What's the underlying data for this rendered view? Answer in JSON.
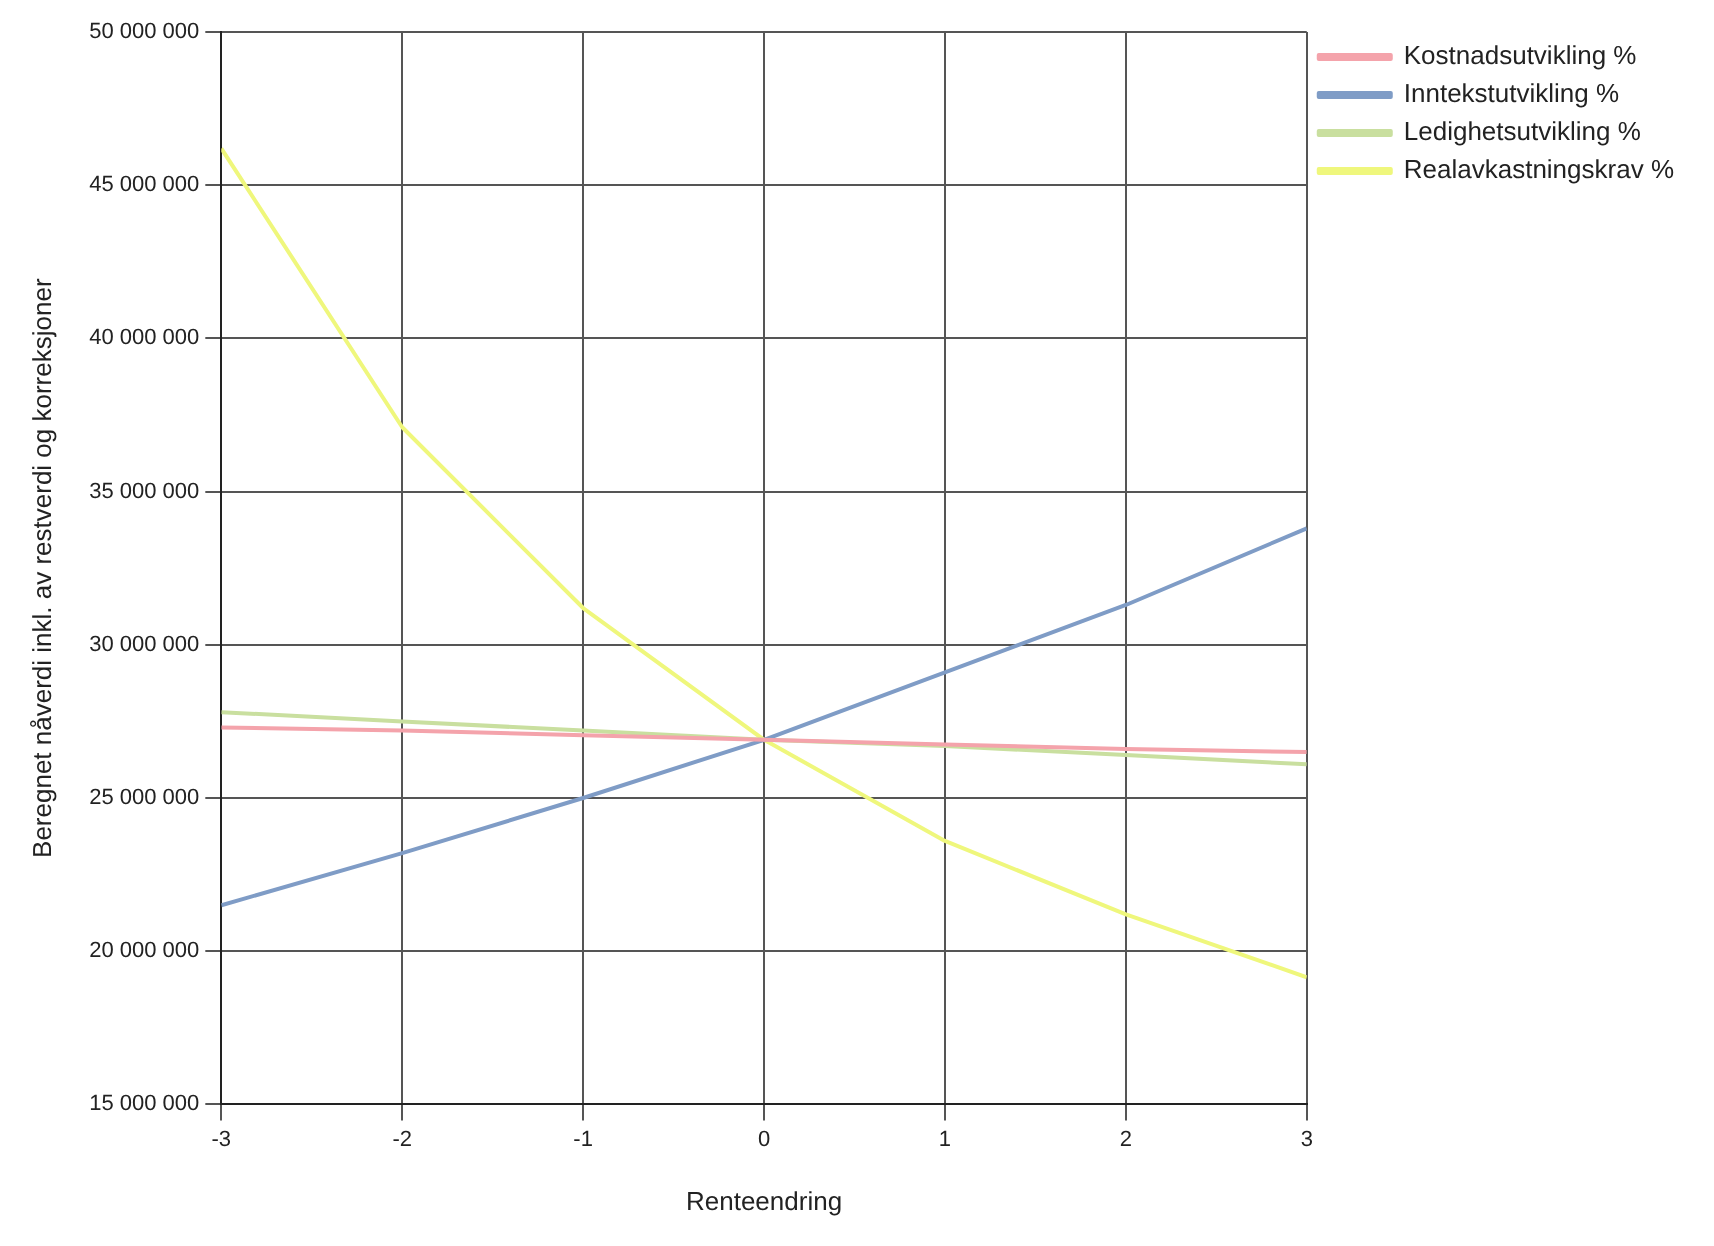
{
  "chart_data": {
    "type": "line",
    "xlabel": "Renteendring",
    "ylabel": "Beregnet nåverdi inkl. av restverdi og korreksjoner",
    "x": [
      -3,
      -2,
      -1,
      0,
      1,
      2,
      3
    ],
    "series": [
      {
        "name": "Kostnadsutvikling %",
        "color": "#f4a3ab",
        "values": [
          27300000,
          27200000,
          27050000,
          26900000,
          26750000,
          26600000,
          26500000
        ]
      },
      {
        "name": "Inntekstutvikling %",
        "color": "#7f9cc6",
        "values": [
          21500000,
          23200000,
          25000000,
          26900000,
          29100000,
          31300000,
          33800000
        ]
      },
      {
        "name": "Ledighetsutvikling %",
        "color": "#c9df9f",
        "values": [
          27800000,
          27500000,
          27200000,
          26900000,
          26700000,
          26400000,
          26100000
        ]
      },
      {
        "name": "Realavkastningskrav %",
        "color": "#eff77c",
        "values": [
          46200000,
          37100000,
          31200000,
          26900000,
          23600000,
          21200000,
          19150000
        ]
      }
    ],
    "xlim": [
      -3,
      3
    ],
    "xticks": [
      -3,
      -2,
      -1,
      0,
      1,
      2,
      3
    ],
    "ylim": [
      15000000,
      50000000
    ],
    "yticks": [
      {
        "value": 15000000,
        "label": "15 000 000"
      },
      {
        "value": 20000000,
        "label": "20 000 000"
      },
      {
        "value": 25000000,
        "label": "25 000 000"
      },
      {
        "value": 30000000,
        "label": "30 000 000"
      },
      {
        "value": 35000000,
        "label": "35 000 000"
      },
      {
        "value": 40000000,
        "label": "40 000 000"
      },
      {
        "value": 45000000,
        "label": "45 000 000"
      },
      {
        "value": 50000000,
        "label": "50 000 000"
      }
    ],
    "grid": true,
    "legend": "top right",
    "marker": "none",
    "line_style": "solid"
  }
}
